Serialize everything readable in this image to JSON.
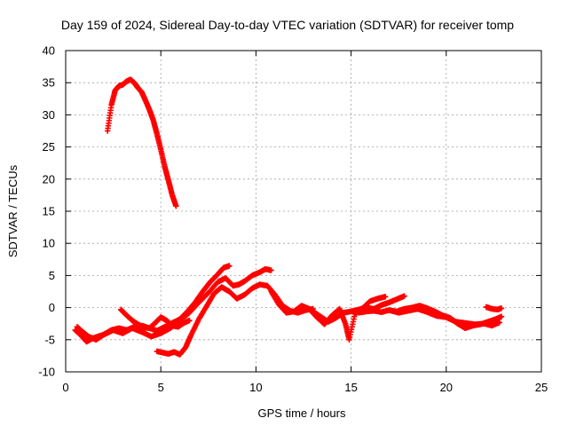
{
  "chart_data": {
    "type": "scatter",
    "title": "Day 159 of 2024, Sidereal Day-to-day VTEC variation (SDTVAR) for receiver tomp",
    "xlabel": "GPS time / hours",
    "ylabel": "SDTVAR / TECUs",
    "xlim": [
      0,
      25
    ],
    "ylim": [
      -10,
      40
    ],
    "xticks": [
      0,
      5,
      10,
      15,
      20,
      25
    ],
    "yticks": [
      -10,
      -5,
      0,
      5,
      10,
      15,
      20,
      25,
      30,
      35,
      40
    ],
    "grid": true,
    "marker": "+",
    "series": [
      {
        "name": "satellite-arc-high",
        "color": "#ff0000",
        "x": [
          2.2,
          2.4,
          2.6,
          2.8,
          3.0,
          3.2,
          3.4,
          3.6,
          3.8,
          4.0,
          4.2,
          4.4,
          4.6,
          4.8,
          5.0,
          5.2,
          5.4,
          5.6,
          5.8
        ],
        "y": [
          27.5,
          31.5,
          33.8,
          34.5,
          34.7,
          35.2,
          35.5,
          35.0,
          34.2,
          33.5,
          32.2,
          30.8,
          29.2,
          27.0,
          24.6,
          22.0,
          19.8,
          17.5,
          15.8
        ]
      },
      {
        "name": "satellite-arc-a",
        "color": "#ff0000",
        "x": [
          0.5,
          0.8,
          1.1,
          1.4,
          1.7,
          2.0,
          2.4,
          2.8,
          3.2,
          3.6,
          4.0,
          4.4,
          4.8,
          5.2,
          5.6,
          6.0,
          6.4,
          6.8,
          7.2,
          7.6,
          8.0,
          8.3,
          8.6
        ],
        "y": [
          -3.5,
          -4.3,
          -5.3,
          -4.8,
          -4.5,
          -4.2,
          -3.5,
          -3.2,
          -3.5,
          -3.0,
          -2.8,
          -3.2,
          -3.6,
          -3.0,
          -2.4,
          -1.8,
          -0.6,
          0.8,
          2.5,
          4.0,
          5.2,
          6.2,
          6.5
        ]
      },
      {
        "name": "satellite-arc-b",
        "color": "#ff0000",
        "x": [
          0.6,
          0.9,
          1.2,
          1.6,
          2.0,
          2.5,
          3.0,
          3.5,
          4.0,
          4.5,
          5.0,
          5.5,
          6.0,
          6.5,
          7.0,
          7.5,
          8.0,
          8.4,
          8.8,
          9.1,
          9.4,
          9.8,
          10.2,
          10.5,
          10.8
        ],
        "y": [
          -3.0,
          -3.8,
          -4.5,
          -5.0,
          -4.2,
          -3.5,
          -4.0,
          -3.2,
          -3.8,
          -4.5,
          -4.0,
          -3.2,
          -2.0,
          -0.8,
          0.8,
          2.3,
          4.0,
          4.6,
          3.4,
          3.6,
          4.1,
          5.0,
          5.5,
          6.0,
          5.8
        ]
      },
      {
        "name": "satellite-arc-c",
        "color": "#ff0000",
        "x": [
          4.8,
          5.1,
          5.4,
          5.7,
          6.0,
          6.3,
          6.6,
          7.0,
          7.4,
          7.8,
          8.2,
          8.6,
          9.0,
          9.4,
          9.8,
          10.2,
          10.6,
          11.0,
          11.4,
          11.8,
          12.2,
          12.6,
          13.0
        ],
        "y": [
          -6.8,
          -7.0,
          -7.2,
          -6.9,
          -7.3,
          -6.2,
          -4.2,
          -1.8,
          0.2,
          2.2,
          3.2,
          2.5,
          1.4,
          2.0,
          3.0,
          3.6,
          3.4,
          2.0,
          0.3,
          -0.5,
          -0.8,
          -0.4,
          -0.2
        ]
      },
      {
        "name": "satellite-arc-d",
        "color": "#ff0000",
        "x": [
          2.9,
          3.2,
          3.5,
          3.8,
          4.1,
          4.4,
          4.7,
          5.0,
          5.3,
          5.6,
          5.9,
          6.2,
          6.5
        ],
        "y": [
          -0.3,
          -1.2,
          -2.0,
          -2.6,
          -3.1,
          -3.2,
          -2.4,
          -1.5,
          -2.0,
          -2.8,
          -3.0,
          -2.4,
          -2.0
        ]
      },
      {
        "name": "satellite-arc-e",
        "color": "#ff0000",
        "x": [
          10.8,
          11.2,
          11.6,
          12.0,
          12.4,
          12.8,
          13.2,
          13.6,
          14.0,
          14.4,
          14.7,
          14.9,
          15.2,
          15.6,
          16.0,
          16.4,
          16.8
        ],
        "y": [
          2.5,
          0.5,
          -0.8,
          -0.6,
          0.3,
          -0.2,
          -1.5,
          -2.6,
          -1.2,
          -0.2,
          -2.5,
          -5.0,
          -1.0,
          -0.1,
          1.0,
          1.4,
          1.7
        ]
      },
      {
        "name": "satellite-arc-f",
        "color": "#ff0000",
        "x": [
          13.0,
          13.4,
          13.8,
          14.2,
          14.6,
          15.0,
          15.4,
          15.8,
          16.2,
          16.6,
          17.0,
          17.4,
          17.8
        ],
        "y": [
          -0.6,
          -1.4,
          -2.2,
          -1.6,
          -0.8,
          -0.6,
          -0.3,
          0.0,
          -0.2,
          0.4,
          0.8,
          1.3,
          1.8
        ]
      },
      {
        "name": "satellite-arc-g",
        "color": "#ff0000",
        "x": [
          15.4,
          15.8,
          16.2,
          16.6,
          17.0,
          17.4,
          17.8,
          18.2,
          18.6,
          19.0,
          19.4,
          19.8,
          20.2,
          20.6,
          21.0,
          21.4,
          21.8,
          22.2,
          22.6,
          22.9
        ],
        "y": [
          -0.8,
          -0.6,
          -0.5,
          -0.7,
          -0.4,
          -0.6,
          -0.2,
          0.0,
          0.3,
          -0.1,
          -0.6,
          -1.2,
          -1.6,
          -2.5,
          -3.2,
          -2.8,
          -2.6,
          -2.2,
          -1.8,
          -1.4
        ]
      },
      {
        "name": "satellite-arc-h",
        "color": "#ff0000",
        "x": [
          17.0,
          17.5,
          18.0,
          18.5,
          19.0,
          19.5,
          20.0,
          20.5,
          21.0,
          21.5,
          22.0,
          22.4,
          22.8
        ],
        "y": [
          -0.4,
          -0.8,
          -0.5,
          -0.2,
          -0.7,
          -1.3,
          -1.5,
          -2.2,
          -2.4,
          -2.6,
          -2.5,
          -2.8,
          -2.3
        ]
      },
      {
        "name": "satellite-arc-i",
        "color": "#ff0000",
        "x": [
          22.1,
          22.4,
          22.7,
          22.9
        ],
        "y": [
          0.1,
          -0.2,
          -0.3,
          -0.1
        ]
      }
    ]
  }
}
